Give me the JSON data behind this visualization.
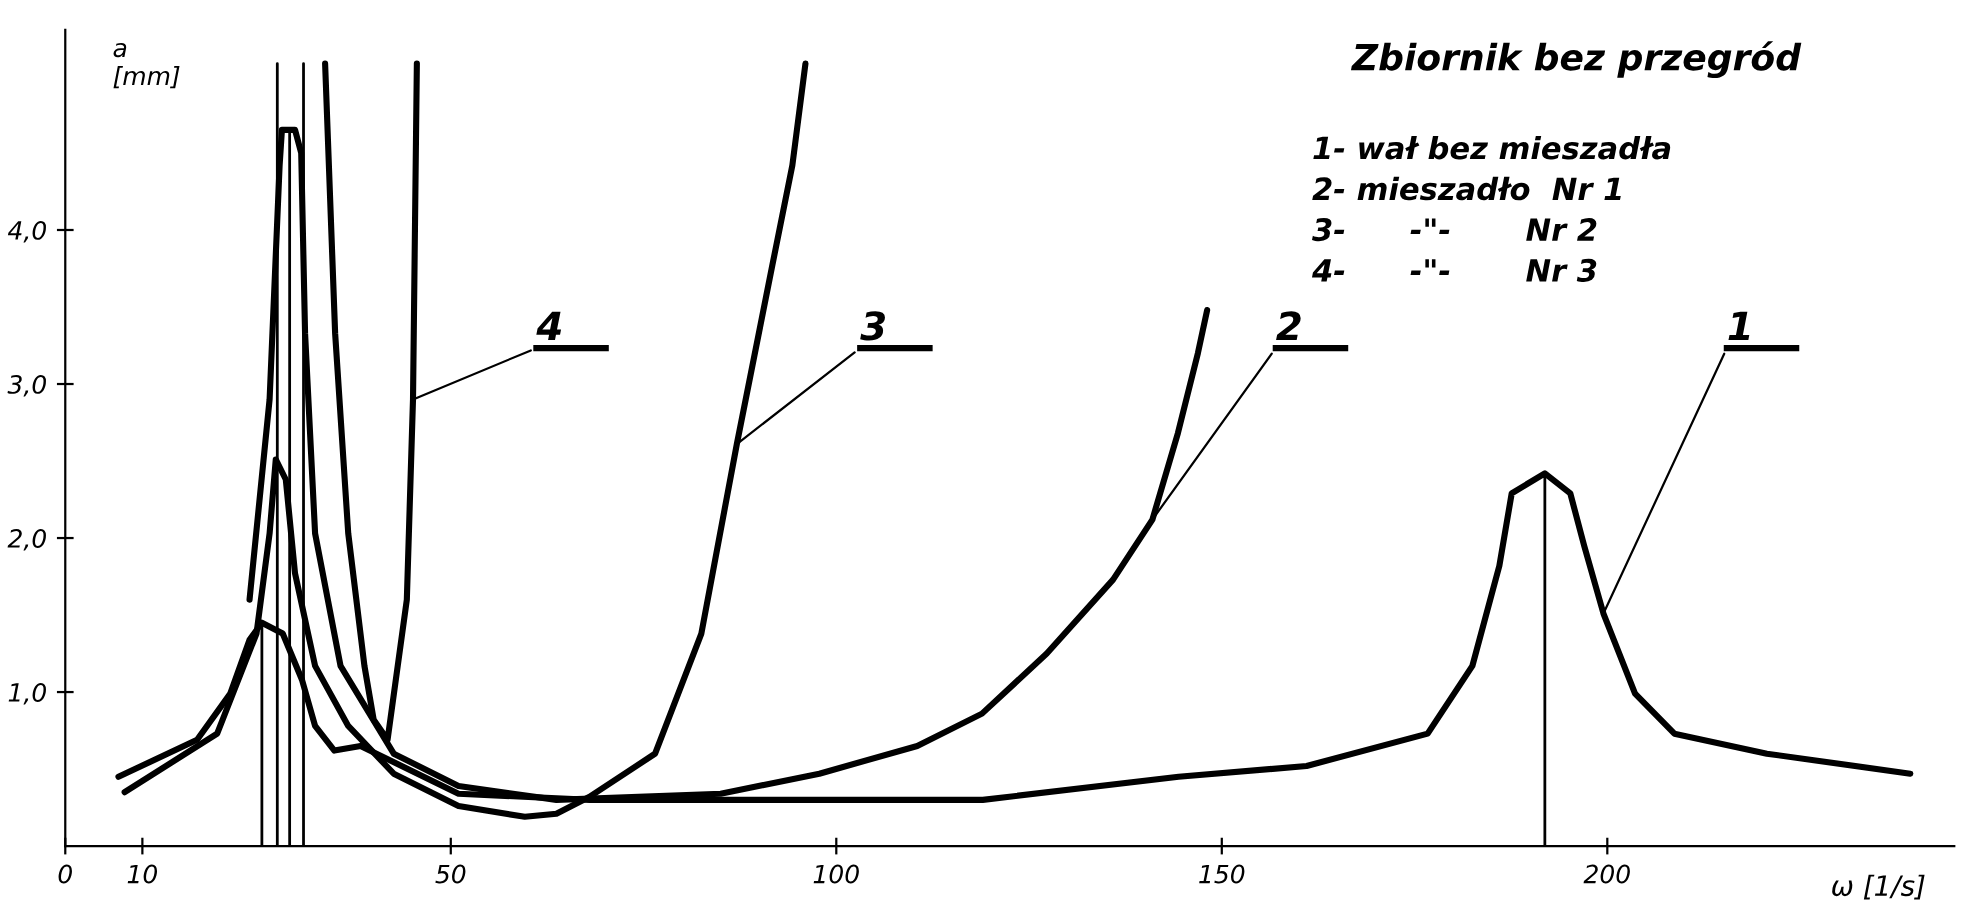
{
  "chart_data": {
    "type": "line",
    "title": "Zbiornik bez przegród",
    "xlabel": "ω [1/s]",
    "ylabel": "a [mm]",
    "xlim": [
      0,
      245
    ],
    "ylim": [
      0,
      5.3
    ],
    "xticks": [
      0,
      10,
      50,
      100,
      150,
      200
    ],
    "yticks": [
      {
        "value": 1,
        "label": "1,0"
      },
      {
        "value": 2,
        "label": "2,0"
      },
      {
        "value": 3,
        "label": "3,0"
      },
      {
        "value": 4,
        "label": "4,0"
      }
    ],
    "grid": false,
    "marker": "none",
    "line_style": "solid",
    "series": [
      {
        "color": "#000000",
        "x": [
          6.9,
          17.1,
          21.4,
          23.9,
          25.5,
          28.2,
          30.7,
          32.4,
          34.9,
          38.3,
          51,
          68,
          119,
          144.4,
          161,
          176.7,
          182.5,
          186,
          187.6,
          191.9,
          195.2,
          197,
          199.5,
          203.6,
          208.7,
          220.7,
          239.3
        ],
        "values": [
          0.45,
          0.69,
          0.99,
          1.34,
          1.45,
          1.38,
          1.08,
          0.78,
          0.62,
          0.65,
          0.34,
          0.3,
          0.3,
          0.45,
          0.52,
          0.73,
          1.17,
          1.82,
          2.29,
          2.42,
          2.29,
          1.95,
          1.51,
          0.99,
          0.73,
          0.6,
          0.47
        ]
      },
      {
        "color": "#000000",
        "x": [
          23.9,
          26.5,
          27.8,
          28.1,
          29.8,
          30.6,
          31.1,
          32.4,
          35.7,
          42.6,
          51,
          63.7,
          85,
          97.8,
          110.5,
          118.9,
          127.3,
          135.9,
          141,
          144.3,
          146.9,
          148.1
        ],
        "values": [
          1.6,
          2.9,
          4.42,
          4.65,
          4.65,
          4.5,
          3.33,
          2.03,
          1.17,
          0.6,
          0.39,
          0.3,
          0.34,
          0.47,
          0.65,
          0.86,
          1.25,
          1.73,
          2.12,
          2.68,
          3.2,
          3.48
        ]
      },
      {
        "color": "#000000",
        "x": [
          7.7,
          19.7,
          24.8,
          26.5,
          27.3,
          28.6,
          29.8,
          32.4,
          36.7,
          42.6,
          51,
          59.6,
          63.7,
          68,
          76.5,
          82.5,
          87.1,
          91.7,
          94.3,
          96
        ],
        "values": [
          0.35,
          0.73,
          1.38,
          2.03,
          2.51,
          2.38,
          1.77,
          1.17,
          0.78,
          0.47,
          0.26,
          0.19,
          0.21,
          0.32,
          0.6,
          1.38,
          2.61,
          3.77,
          4.42,
          5.08
        ]
      },
      {
        "color": "#000000",
        "x": [
          33.7,
          35,
          36.7,
          38.8,
          40,
          41.8,
          44.3,
          45.1,
          45.6
        ],
        "values": [
          5.08,
          3.33,
          2.03,
          1.17,
          0.82,
          0.69,
          1.6,
          2.9,
          5.08
        ]
      },
      {
        "color": "#000000",
        "x": [
          25.5,
          25.5
        ],
        "values": [
          0,
          1.45
        ]
      },
      {
        "color": "#000000",
        "x": [
          27.5,
          27.5
        ],
        "values": [
          0,
          5.08
        ]
      },
      {
        "color": "#000000",
        "x": [
          29.1,
          29.1
        ],
        "values": [
          0,
          4.65
        ]
      },
      {
        "color": "#000000",
        "x": [
          30.9,
          30.9
        ],
        "values": [
          0,
          5.08
        ]
      },
      {
        "color": "#000000",
        "x": [
          191.9,
          191.9
        ],
        "values": [
          0,
          2.42
        ]
      }
    ],
    "annotations": [
      {
        "text": "1",
        "x": 199.5,
        "y": 1.51
      },
      {
        "text": "2",
        "x": 141,
        "y": 2.12
      },
      {
        "text": "3",
        "x": 87.1,
        "y": 2.61
      },
      {
        "text": "4",
        "x": 45.1,
        "y": 2.9
      },
      "1- wał bez mieszadła",
      "2- mieszadło  Nr 1",
      "3-      -\"-       Nr 2",
      "4-      -\"-       Nr 3"
    ]
  }
}
